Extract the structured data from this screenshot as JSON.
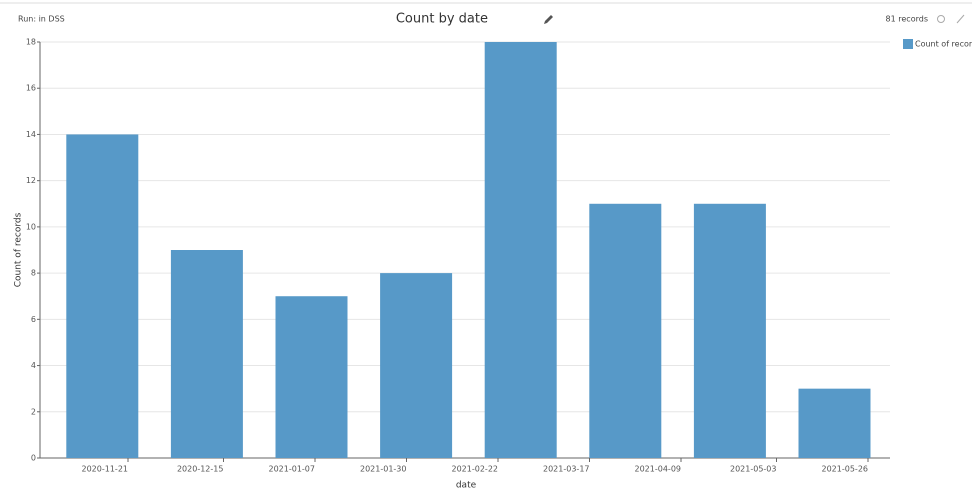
{
  "header": {
    "run": "Run: in DSS",
    "records": "81 records"
  },
  "chart_data": {
    "type": "bar",
    "title": "Count by date",
    "categories": [
      null,
      null,
      null,
      null,
      null,
      null,
      null,
      null
    ],
    "values": [
      14,
      9,
      7,
      8,
      18,
      11,
      11,
      3
    ],
    "color": "#5799c8",
    "series_name": "Count of records",
    "x_label": "date",
    "y_label": "Count of records",
    "ylim": [
      0,
      18
    ],
    "yticks": [
      0,
      2,
      4,
      6,
      8,
      10,
      12,
      14,
      16,
      18
    ],
    "xticks": [
      "2020-11-21",
      "2020-12-15",
      "2021-01-07",
      "2021-01-30",
      "2021-02-22",
      "2021-03-17",
      "2021-04-09",
      "2021-05-03",
      "2021-05-26"
    ],
    "grid": true
  }
}
